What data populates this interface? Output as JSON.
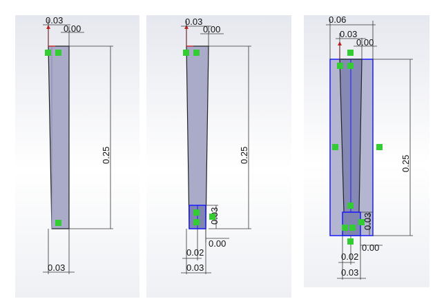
{
  "panels": [
    {
      "labels": {
        "top_width": "0.03",
        "top_offset": "0.00",
        "height": "0.25",
        "bottom_width": "0.03"
      }
    },
    {
      "labels": {
        "top_width": "0.03",
        "top_offset": "0.00",
        "height": "0.25",
        "box_height": "0.03",
        "bottom_offset": "0.00",
        "bottom_inner_width": "0.02",
        "bottom_width": "0.03"
      }
    },
    {
      "labels": {
        "outer_width": "0.06",
        "top_width": "0.03",
        "top_offset": "0.00",
        "height": "0.25",
        "box_height": "0.03",
        "bottom_offset": "0.00",
        "bottom_inner_width": "0.02",
        "bottom_width": "0.03"
      }
    }
  ],
  "colors": {
    "part_fill": "#a9abc8",
    "part_edge": "#222222",
    "sketch_blue": "#1a1aff",
    "relation_green": "#33cc33",
    "origin_red": "#e02020"
  }
}
